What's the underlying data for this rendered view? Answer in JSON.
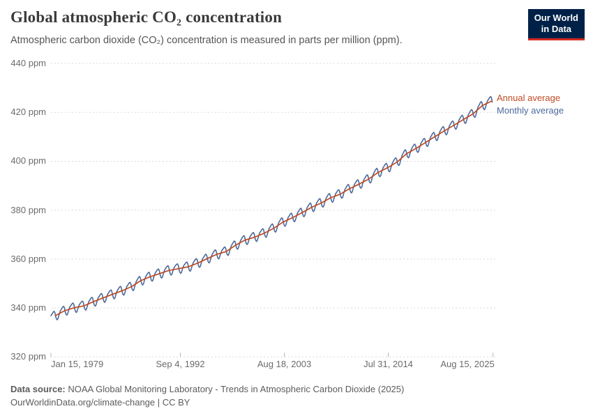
{
  "header": {
    "title": "Global atmospheric CO₂ concentration",
    "subtitle": "Atmospheric carbon dioxide (CO₂) concentration is measured in parts per million (ppm)."
  },
  "logo": {
    "line1": "Our World",
    "line2": "in Data",
    "bg_color": "#002147",
    "accent_color": "#d42b21"
  },
  "footer": {
    "data_source_label": "Data source:",
    "data_source_text": "NOAA Global Monitoring Laboratory - Trends in Atmospheric Carbon Dioxide (2025)",
    "license_line": "OurWorldinData.org/climate-change | CC BY"
  },
  "chart_data": {
    "type": "line",
    "title": "Global atmospheric CO₂ concentration",
    "ylabel": "ppm",
    "ylim": [
      320,
      440
    ],
    "grid": "dashed-horizontal",
    "gridline_color": "#d9d9d9",
    "legend_position": "line-end-right",
    "y_ticks": [
      {
        "ppm": 440,
        "label": "440 ppm"
      },
      {
        "ppm": 420,
        "label": "420 ppm"
      },
      {
        "ppm": 400,
        "label": "400 ppm"
      },
      {
        "ppm": 380,
        "label": "380 ppm"
      },
      {
        "ppm": 360,
        "label": "360 ppm"
      },
      {
        "ppm": 340,
        "label": "340 ppm"
      },
      {
        "ppm": 320,
        "label": "320 ppm"
      }
    ],
    "x_ticks": [
      {
        "label": "Jan 15, 1979",
        "year": 1979.04,
        "align": "left"
      },
      {
        "label": "Sep 4, 1992",
        "year": 1992.68,
        "align": "center"
      },
      {
        "label": "Aug 18, 2003",
        "year": 2003.63,
        "align": "center"
      },
      {
        "label": "Jul 31, 2014",
        "year": 2014.58,
        "align": "center"
      },
      {
        "label": "Aug 15, 2025",
        "year": 2025.62,
        "align": "right"
      }
    ],
    "x_range_years": [
      1979.04,
      2025.62
    ],
    "series": [
      {
        "name": "Annual average",
        "color": "#bf4a23",
        "years": [
          1979,
          1980,
          1981,
          1982,
          1983,
          1984,
          1985,
          1986,
          1987,
          1988,
          1989,
          1990,
          1991,
          1992,
          1993,
          1994,
          1995,
          1996,
          1997,
          1998,
          1999,
          2000,
          2001,
          2002,
          2003,
          2004,
          2005,
          2006,
          2007,
          2008,
          2009,
          2010,
          2011,
          2012,
          2013,
          2014,
          2015,
          2016,
          2017,
          2018,
          2019,
          2020,
          2021,
          2022,
          2023,
          2024,
          2025
        ],
        "values_ppm": [
          336.85,
          338.91,
          340.11,
          340.86,
          342.53,
          344.07,
          345.54,
          346.97,
          348.68,
          351.16,
          352.79,
          354.06,
          355.39,
          356.09,
          356.83,
          358.33,
          360.17,
          361.93,
          363.05,
          365.7,
          367.8,
          368.96,
          370.57,
          372.58,
          375.14,
          376.95,
          378.98,
          381.15,
          382.9,
          385.02,
          386.5,
          388.76,
          390.63,
          392.65,
          395.4,
          397.34,
          399.65,
          403.07,
          405.22,
          407.61,
          410.07,
          412.44,
          414.7,
          417.08,
          419.35,
          422.79,
          424.61
        ]
      },
      {
        "name": "Monthly average",
        "color": "#4c6a9c",
        "derivation": "interpolated annual average plus monthly seasonal offset",
        "seasonal_offsets_ppm": [
          0.95,
          1.25,
          1.65,
          1.95,
          2.05,
          1.3,
          -0.45,
          -1.6,
          -2.1,
          -1.75,
          -0.7,
          0.2
        ],
        "start": "Jan 1979",
        "end": "Jul 2025"
      }
    ]
  }
}
